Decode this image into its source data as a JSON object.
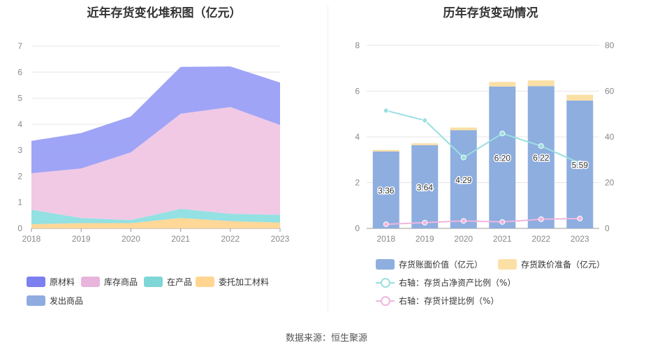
{
  "left_title": "近年存货变化堆积图（亿元）",
  "right_title": "历年存货变动情况",
  "source": "数据来源：恒生聚源",
  "chart_data": [
    {
      "type": "area",
      "title": "近年存货变化堆积图（亿元）",
      "x": [
        "2018",
        "2019",
        "2020",
        "2021",
        "2022",
        "2023"
      ],
      "ylim": [
        0,
        7
      ],
      "yticks": [
        "0",
        "1",
        "2",
        "3",
        "4",
        "5",
        "6",
        "7"
      ],
      "stacked": true,
      "series": [
        {
          "name": "委托加工材料",
          "color": "#ffd591",
          "values": [
            0.16,
            0.2,
            0.2,
            0.4,
            0.28,
            0.22
          ]
        },
        {
          "name": "在产品",
          "color": "#8ddfe0",
          "values": [
            0.56,
            0.2,
            0.12,
            0.35,
            0.28,
            0.3
          ]
        },
        {
          "name": "库存商品",
          "color": "#f0c6e4",
          "values": [
            1.4,
            1.9,
            2.6,
            3.65,
            4.1,
            3.45
          ]
        },
        {
          "name": "发出商品",
          "color": "#8eb0e0",
          "values": [
            0,
            0,
            0,
            0,
            0,
            0
          ]
        },
        {
          "name": "原材料",
          "color": "#9a9ff5",
          "values": [
            1.24,
            1.36,
            1.38,
            1.8,
            1.56,
            1.63
          ]
        }
      ],
      "legend": [
        {
          "name": "原材料",
          "color": "#7b7ff0"
        },
        {
          "name": "库存商品",
          "color": "#e8b4dc"
        },
        {
          "name": "在产品",
          "color": "#7fd6d6"
        },
        {
          "name": "委托加工材料",
          "color": "#ffd591"
        },
        {
          "name": "发出商品",
          "color": "#8eace0"
        }
      ],
      "legend_position": "bottom-left",
      "grid": true
    },
    {
      "type": "bar",
      "title": "历年存货变动情况",
      "categories": [
        "2018",
        "2019",
        "2020",
        "2021",
        "2022",
        "2023"
      ],
      "ylim": [
        0,
        8
      ],
      "yticks": [
        "0",
        "2",
        "4",
        "6",
        "8"
      ],
      "y2lim": [
        0,
        80
      ],
      "y2ticks": [
        "0",
        "20",
        "40",
        "60",
        "80"
      ],
      "series": [
        {
          "name": "存货账面价值（亿元）",
          "color": "#8eaedf",
          "values": [
            3.36,
            3.64,
            4.29,
            6.2,
            6.22,
            5.59
          ],
          "labels": [
            "3.36",
            "3.64",
            "4.29",
            "6.20",
            "6.22",
            "5.59"
          ]
        },
        {
          "name": "存货跌价准备（亿元）",
          "color": "#fbe0a6",
          "values": [
            0.07,
            0.08,
            0.12,
            0.2,
            0.25,
            0.25
          ]
        },
        {
          "name": "右轴：存货占净资产比例（%）",
          "color": "#9adfe0",
          "axis": "right",
          "values": [
            51.5,
            47.2,
            31,
            41.5,
            36,
            28.5
          ]
        },
        {
          "name": "右轴：存货计提比例（%）",
          "color": "#f0b6e0",
          "axis": "right",
          "values": [
            1.8,
            2.5,
            3.3,
            2.8,
            4.0,
            4.3
          ]
        }
      ],
      "legend_position": "bottom",
      "grid": true
    }
  ]
}
